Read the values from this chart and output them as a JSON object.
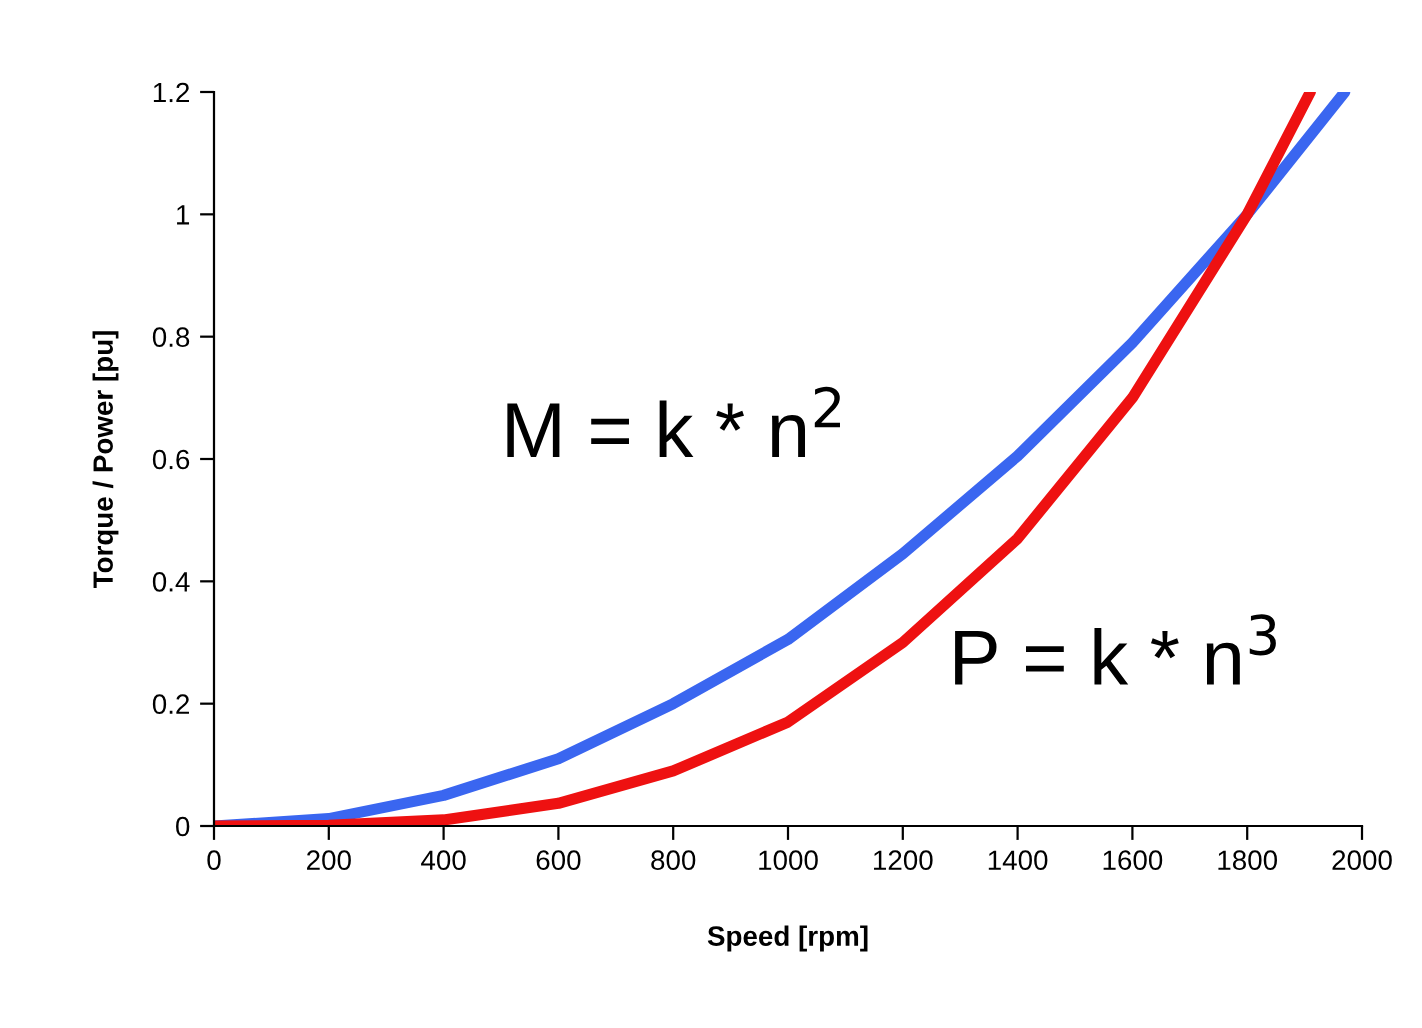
{
  "chart_data": {
    "type": "line",
    "xlabel": "Speed [rpm]",
    "ylabel": "Torque / Power [pu]",
    "series": [
      {
        "color": "#3a66f0",
        "x": [
          0,
          200,
          400,
          600,
          800,
          1000,
          1200,
          1400,
          1600,
          1800,
          1970
        ],
        "values": [
          0,
          0.012,
          0.05,
          0.11,
          0.2,
          0.305,
          0.445,
          0.605,
          0.79,
          1,
          1.2
        ]
      },
      {
        "color": "#ee1111",
        "x": [
          0,
          200,
          400,
          600,
          800,
          1000,
          1200,
          1400,
          1600,
          1800,
          1910
        ],
        "values": [
          0,
          0.001,
          0.01,
          0.037,
          0.09,
          0.17,
          0.3,
          0.47,
          0.7,
          1,
          1.2
        ]
      }
    ],
    "annotations": [
      "M = k * n$^{2}$",
      "P = k * n$^{3}$"
    ],
    "xlim": [
      0,
      2000
    ],
    "xticks": [
      0,
      200,
      400,
      600,
      800,
      1000,
      1200,
      1400,
      1600,
      1800,
      2000
    ],
    "ylim": [
      0,
      1.2
    ],
    "yticks": [
      {
        "value": 0,
        "label": "0"
      },
      {
        "value": 0.2,
        "label": "0.2"
      },
      {
        "value": 0.4,
        "label": "0.4"
      },
      {
        "value": 0.6,
        "label": "0.6"
      },
      {
        "value": 0.8,
        "label": "0.8"
      },
      {
        "value": 1,
        "label": "1"
      },
      {
        "value": 1.2,
        "label": "1.2"
      }
    ],
    "grid": false,
    "marker": "none",
    "line_style": "solid"
  }
}
